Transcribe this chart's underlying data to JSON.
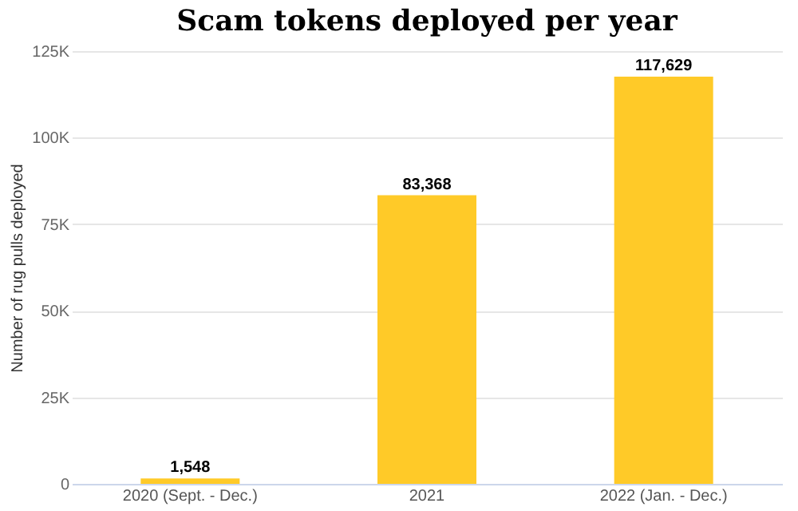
{
  "chart_data": {
    "type": "bar",
    "title": "Scam tokens deployed per year",
    "ylabel": "Number of rug pulls deployed",
    "categories": [
      "2020 (Sept. - Dec.)",
      "2021",
      "2022 (Jan. - Dec.)"
    ],
    "values": [
      1548,
      83368,
      117629
    ],
    "color": "#ffca28",
    "value_labels": [
      "1,548",
      "83,368",
      "117,629"
    ],
    "ylim": [
      0,
      125000
    ],
    "yticks": [
      {
        "value": 0,
        "label": "0"
      },
      {
        "value": 25000,
        "label": "25K"
      },
      {
        "value": 50000,
        "label": "50K"
      },
      {
        "value": 75000,
        "label": "75K"
      },
      {
        "value": 100000,
        "label": "100K"
      },
      {
        "value": 125000,
        "label": "125K"
      }
    ],
    "grid": "y"
  }
}
